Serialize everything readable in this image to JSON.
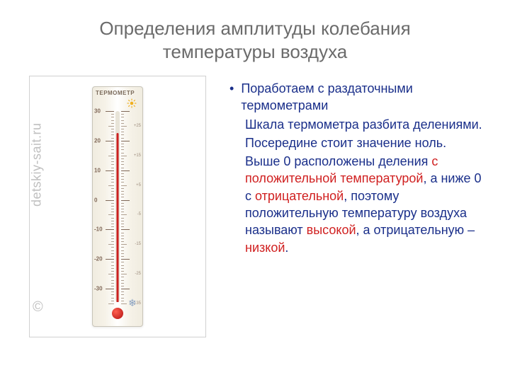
{
  "title_line1": "Определения амплитуды колебания",
  "title_line2": "температуры воздуха",
  "watermark_text": "detskiy-sait.ru",
  "watermark_copy": "©",
  "thermo": {
    "header": "ТЕРМОМЕТР",
    "scale_min": -35,
    "scale_max": 30,
    "major_step": 10,
    "minor_step": 5,
    "major_labels_left": [
      "30",
      "20",
      "10",
      "0",
      "-10",
      "-20",
      "-30"
    ],
    "minor_labels_right": [
      "+25",
      "+15",
      "+5",
      "-5",
      "-15",
      "-25",
      "-35"
    ],
    "current_temp": 22,
    "colors": {
      "mercury": "#cc2020",
      "bulb_light": "#ff6050",
      "bulb_dark": "#b01010",
      "tick": "#806858",
      "tick_minor": "#b0a090"
    }
  },
  "body": {
    "bullet": "•",
    "p1": "Поработаем с раздаточными термометрами",
    "p2": "Шкала термометра разбита делениями.",
    "p3": "Посередине стоит значение ноль.",
    "p4_a": "Выше 0 расположены деления ",
    "p4_b": "с положительной температурой",
    "p4_c": ", а ниже 0 с ",
    "p4_d": "отрицательной",
    "p4_e": ", поэтому положительную температуру воздуха называют ",
    "p4_f": "высокой",
    "p4_g": ", а отрицательную – ",
    "p4_h": "низкой",
    "p4_i": "."
  }
}
